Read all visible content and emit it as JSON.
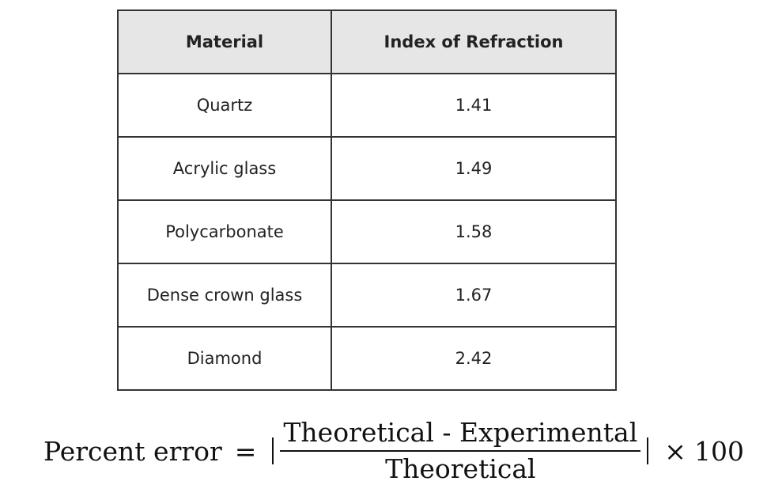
{
  "table": {
    "headers": [
      "Material",
      "Index of Refraction"
    ],
    "rows": [
      [
        "Quartz",
        "1.41"
      ],
      [
        "Acrylic glass",
        "1.49"
      ],
      [
        "Polycarbonate",
        "1.58"
      ],
      [
        "Dense crown glass",
        "1.67"
      ],
      [
        "Diamond",
        "2.42"
      ]
    ]
  },
  "formula": {
    "lhs": "Percent error",
    "equals": "=",
    "numerator": "Theoretical - Experimental",
    "denominator": "Theoretical",
    "times": "×",
    "multiplier": "100"
  }
}
